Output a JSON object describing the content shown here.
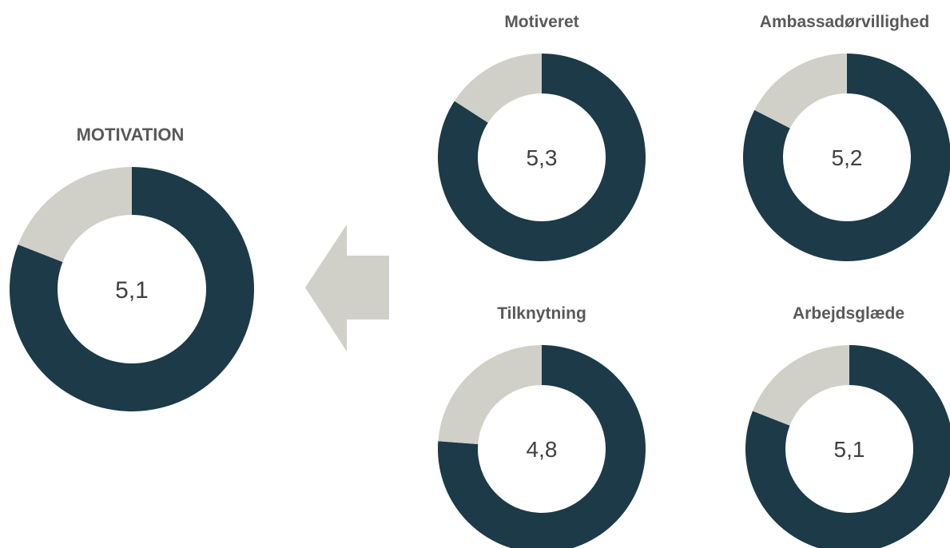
{
  "colors": {
    "primary": "#1c3a47",
    "remainder": "#d0d0c9",
    "arrow": "#d0d0c9"
  },
  "chart_data": [
    {
      "type": "pie",
      "title": "MOTIVATION",
      "value_label": "5,1",
      "value": 5.1,
      "max": 6.3,
      "slices": [
        {
          "label": "score",
          "value": 5.1
        },
        {
          "label": "remainder",
          "value": 1.2
        }
      ]
    },
    {
      "type": "pie",
      "title": "Motiveret",
      "value_label": "5,3",
      "value": 5.3,
      "max": 6.3,
      "slices": [
        {
          "label": "score",
          "value": 5.3
        },
        {
          "label": "remainder",
          "value": 1.0
        }
      ]
    },
    {
      "type": "pie",
      "title": "Ambassadørvillighed",
      "value_label": "5,2",
      "value": 5.2,
      "max": 6.3,
      "slices": [
        {
          "label": "score",
          "value": 5.2
        },
        {
          "label": "remainder",
          "value": 1.1
        }
      ]
    },
    {
      "type": "pie",
      "title": "Tilknytning",
      "value_label": "4,8",
      "value": 4.8,
      "max": 6.3,
      "slices": [
        {
          "label": "score",
          "value": 4.8
        },
        {
          "label": "remainder",
          "value": 1.5
        }
      ]
    },
    {
      "type": "pie",
      "title": "Arbejdsglæde",
      "value_label": "5,1",
      "value": 5.1,
      "max": 6.3,
      "slices": [
        {
          "label": "score",
          "value": 5.1
        },
        {
          "label": "remainder",
          "value": 1.2
        }
      ]
    }
  ]
}
